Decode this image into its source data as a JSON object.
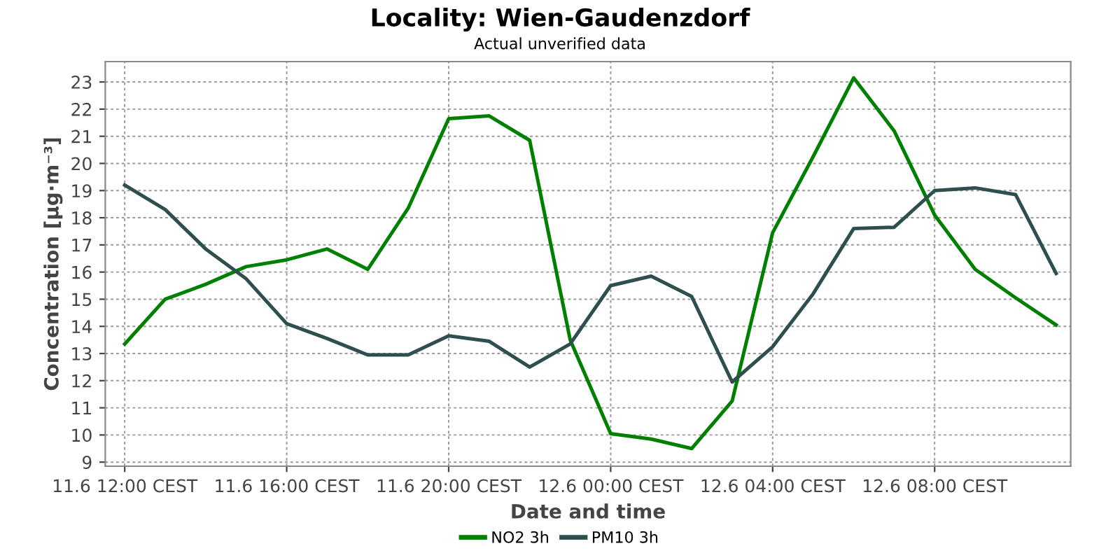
{
  "chart_data": {
    "type": "line",
    "title": "Locality: Wien-Gaudenzdorf",
    "subtitle": "Actual unverified data",
    "xlabel": "Date and time",
    "ylabel": "Concentration [µg·m⁻³]",
    "categories": [
      "11.6 12:00 CEST",
      null,
      null,
      null,
      "11.6 16:00 CEST",
      null,
      null,
      null,
      "11.6 20:00 CEST",
      null,
      null,
      null,
      "12.6 00:00 CEST",
      null,
      null,
      null,
      "12.6 04:00 CEST",
      null,
      null,
      null,
      "12.6 08:00 CEST",
      null,
      null,
      null
    ],
    "series": [
      {
        "name": "NO2 3h",
        "color": "#008000",
        "values": [
          13.35,
          15.0,
          15.55,
          16.2,
          16.45,
          16.85,
          16.1,
          18.35,
          21.65,
          21.75,
          20.85,
          13.5,
          10.05,
          9.85,
          9.5,
          11.25,
          17.45,
          20.25,
          23.15,
          21.2,
          18.1,
          16.1,
          15.05,
          14.05
        ]
      },
      {
        "name": "PM10 3h",
        "color": "#2f4f4f",
        "values": [
          19.2,
          18.3,
          16.85,
          15.75,
          14.1,
          13.55,
          12.95,
          12.95,
          13.65,
          13.45,
          12.5,
          13.35,
          15.5,
          15.85,
          15.1,
          11.95,
          13.25,
          15.2,
          17.6,
          17.65,
          19.0,
          19.1,
          18.85,
          15.95
        ]
      }
    ],
    "ylim": [
      8.85,
      23.75
    ],
    "yticks": [
      9,
      10,
      11,
      12,
      13,
      14,
      15,
      16,
      17,
      18,
      19,
      20,
      21,
      22,
      23
    ],
    "grid": true,
    "legend": "bottom",
    "marker": "none",
    "line_style": "solid"
  }
}
